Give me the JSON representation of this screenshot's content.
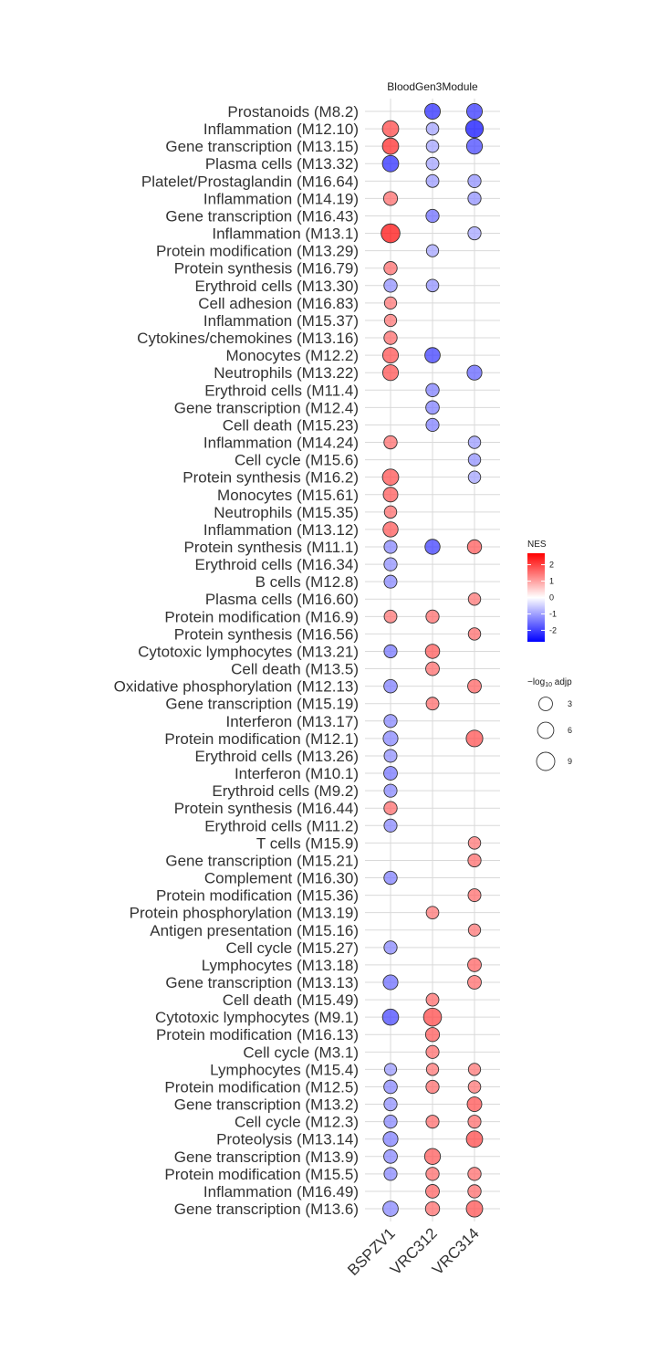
{
  "chart_data": {
    "type": "scatter",
    "facet_label": "BloodGen3Module",
    "columns": [
      "BSPZV1",
      "VRC312",
      "VRC314"
    ],
    "rows": [
      "Prostanoids (M8.2)",
      "Inflammation (M12.10)",
      "Gene transcription (M13.15)",
      "Plasma cells (M13.32)",
      "Platelet/Prostaglandin (M16.64)",
      "Inflammation (M14.19)",
      "Gene transcription (M16.43)",
      "Inflammation (M13.1)",
      "Protein modification (M13.29)",
      "Protein synthesis (M16.79)",
      "Erythroid cells (M13.30)",
      "Cell adhesion (M16.83)",
      "Inflammation (M15.37)",
      "Cytokines/chemokines (M13.16)",
      "Monocytes (M12.2)",
      "Neutrophils (M13.22)",
      "Erythroid cells (M11.4)",
      "Gene transcription (M12.4)",
      "Cell death (M15.23)",
      "Inflammation (M14.24)",
      "Cell cycle (M15.6)",
      "Protein synthesis (M16.2)",
      "Monocytes (M15.61)",
      "Neutrophils (M15.35)",
      "Inflammation (M13.12)",
      "Protein synthesis (M11.1)",
      "Erythroid cells (M16.34)",
      "B cells (M12.8)",
      "Plasma cells (M16.60)",
      "Protein modification (M16.9)",
      "Protein synthesis (M16.56)",
      "Cytotoxic lymphocytes (M13.21)",
      "Cell death (M13.5)",
      "Oxidative phosphorylation (M12.13)",
      "Gene transcription (M15.19)",
      "Interferon (M13.17)",
      "Protein modification (M12.1)",
      "Erythroid cells (M13.26)",
      "Interferon (M10.1)",
      "Erythroid cells (M9.2)",
      "Protein synthesis (M16.44)",
      "Erythroid cells (M11.2)",
      "T cells (M15.9)",
      "Gene transcription (M15.21)",
      "Complement (M16.30)",
      "Protein modification (M15.36)",
      "Protein phosphorylation (M13.19)",
      "Antigen presentation (M15.16)",
      "Cell cycle (M15.27)",
      "Lymphocytes (M13.18)",
      "Gene transcription (M13.13)",
      "Cell death (M15.49)",
      "Cytotoxic lymphocytes (M9.1)",
      "Protein modification (M16.13)",
      "Cell cycle (M3.1)",
      "Lymphocytes (M15.4)",
      "Protein modification (M12.5)",
      "Gene transcription (M13.2)",
      "Cell cycle (M12.3)",
      "Proteolysis (M13.14)",
      "Gene transcription (M13.9)",
      "Protein modification (M15.5)",
      "Inflammation (M16.49)",
      "Gene transcription (M13.6)"
    ],
    "points": [
      {
        "row": 0,
        "col": 1,
        "nes": -2.3,
        "size": 5.2
      },
      {
        "row": 0,
        "col": 2,
        "nes": -2.2,
        "size": 5.2
      },
      {
        "row": 1,
        "col": 0,
        "nes": 2.0,
        "size": 6.0
      },
      {
        "row": 1,
        "col": 1,
        "nes": -1.0,
        "size": 2.0
      },
      {
        "row": 1,
        "col": 2,
        "nes": -2.6,
        "size": 8.0
      },
      {
        "row": 2,
        "col": 0,
        "nes": 2.3,
        "size": 6.0
      },
      {
        "row": 2,
        "col": 1,
        "nes": -1.0,
        "size": 2.0
      },
      {
        "row": 2,
        "col": 2,
        "nes": -2.0,
        "size": 5.4
      },
      {
        "row": 3,
        "col": 0,
        "nes": -2.3,
        "size": 6.0
      },
      {
        "row": 3,
        "col": 1,
        "nes": -1.0,
        "size": 2.2
      },
      {
        "row": 4,
        "col": 1,
        "nes": -1.1,
        "size": 2.2
      },
      {
        "row": 4,
        "col": 2,
        "nes": -1.2,
        "size": 2.5
      },
      {
        "row": 5,
        "col": 0,
        "nes": 1.6,
        "size": 3.3
      },
      {
        "row": 5,
        "col": 2,
        "nes": -1.2,
        "size": 2.5
      },
      {
        "row": 6,
        "col": 1,
        "nes": -1.6,
        "size": 2.5
      },
      {
        "row": 7,
        "col": 0,
        "nes": 2.6,
        "size": 10.0
      },
      {
        "row": 7,
        "col": 2,
        "nes": -1.0,
        "size": 2.5
      },
      {
        "row": 8,
        "col": 1,
        "nes": -1.0,
        "size": 1.8
      },
      {
        "row": 9,
        "col": 0,
        "nes": 1.6,
        "size": 2.6
      },
      {
        "row": 10,
        "col": 0,
        "nes": -1.2,
        "size": 2.6
      },
      {
        "row": 10,
        "col": 1,
        "nes": -1.2,
        "size": 2.0
      },
      {
        "row": 11,
        "col": 0,
        "nes": 1.5,
        "size": 1.8
      },
      {
        "row": 12,
        "col": 0,
        "nes": 1.5,
        "size": 1.8
      },
      {
        "row": 13,
        "col": 0,
        "nes": 1.6,
        "size": 2.6
      },
      {
        "row": 14,
        "col": 0,
        "nes": 1.9,
        "size": 5.3
      },
      {
        "row": 14,
        "col": 1,
        "nes": -2.1,
        "size": 4.8
      },
      {
        "row": 15,
        "col": 0,
        "nes": 1.9,
        "size": 5.3
      },
      {
        "row": 15,
        "col": 2,
        "nes": -1.7,
        "size": 4.2
      },
      {
        "row": 16,
        "col": 1,
        "nes": -1.4,
        "size": 2.6
      },
      {
        "row": 17,
        "col": 1,
        "nes": -1.4,
        "size": 2.8
      },
      {
        "row": 18,
        "col": 1,
        "nes": -1.4,
        "size": 2.4
      },
      {
        "row": 19,
        "col": 0,
        "nes": 1.6,
        "size": 2.6
      },
      {
        "row": 19,
        "col": 2,
        "nes": -1.1,
        "size": 1.9
      },
      {
        "row": 20,
        "col": 2,
        "nes": -1.2,
        "size": 1.9
      },
      {
        "row": 21,
        "col": 0,
        "nes": 1.9,
        "size": 6.0
      },
      {
        "row": 21,
        "col": 2,
        "nes": -1.0,
        "size": 1.9
      },
      {
        "row": 22,
        "col": 0,
        "nes": 1.8,
        "size": 4.0
      },
      {
        "row": 23,
        "col": 0,
        "nes": 1.6,
        "size": 1.9
      },
      {
        "row": 24,
        "col": 0,
        "nes": 1.8,
        "size": 4.5
      },
      {
        "row": 25,
        "col": 0,
        "nes": -1.3,
        "size": 2.4
      },
      {
        "row": 25,
        "col": 1,
        "nes": -2.1,
        "size": 4.5
      },
      {
        "row": 25,
        "col": 2,
        "nes": 1.8,
        "size": 3.5
      },
      {
        "row": 26,
        "col": 0,
        "nes": -1.2,
        "size": 2.5
      },
      {
        "row": 27,
        "col": 0,
        "nes": -1.3,
        "size": 2.3
      },
      {
        "row": 28,
        "col": 2,
        "nes": 1.5,
        "size": 1.9
      },
      {
        "row": 29,
        "col": 0,
        "nes": 1.5,
        "size": 2.2
      },
      {
        "row": 29,
        "col": 1,
        "nes": 1.6,
        "size": 2.5
      },
      {
        "row": 30,
        "col": 2,
        "nes": 1.6,
        "size": 1.9
      },
      {
        "row": 31,
        "col": 0,
        "nes": -1.5,
        "size": 2.4
      },
      {
        "row": 31,
        "col": 1,
        "nes": 1.8,
        "size": 3.6
      },
      {
        "row": 32,
        "col": 1,
        "nes": 1.6,
        "size": 3.0
      },
      {
        "row": 33,
        "col": 0,
        "nes": -1.4,
        "size": 2.8
      },
      {
        "row": 33,
        "col": 2,
        "nes": 1.7,
        "size": 3.0
      },
      {
        "row": 34,
        "col": 1,
        "nes": 1.6,
        "size": 2.2
      },
      {
        "row": 35,
        "col": 0,
        "nes": -1.3,
        "size": 2.5
      },
      {
        "row": 36,
        "col": 0,
        "nes": -1.3,
        "size": 4.2
      },
      {
        "row": 36,
        "col": 2,
        "nes": 1.9,
        "size": 6.5
      },
      {
        "row": 37,
        "col": 0,
        "nes": -1.2,
        "size": 2.3
      },
      {
        "row": 38,
        "col": 0,
        "nes": -1.5,
        "size": 3.0
      },
      {
        "row": 39,
        "col": 0,
        "nes": -1.3,
        "size": 2.4
      },
      {
        "row": 40,
        "col": 0,
        "nes": 1.6,
        "size": 2.6
      },
      {
        "row": 41,
        "col": 0,
        "nes": -1.3,
        "size": 2.4
      },
      {
        "row": 42,
        "col": 2,
        "nes": 1.5,
        "size": 1.9
      },
      {
        "row": 43,
        "col": 2,
        "nes": 1.6,
        "size": 2.5
      },
      {
        "row": 44,
        "col": 0,
        "nes": -1.4,
        "size": 2.6
      },
      {
        "row": 45,
        "col": 2,
        "nes": 1.6,
        "size": 2.3
      },
      {
        "row": 46,
        "col": 1,
        "nes": 1.5,
        "size": 2.1
      },
      {
        "row": 47,
        "col": 2,
        "nes": 1.5,
        "size": 1.8
      },
      {
        "row": 48,
        "col": 0,
        "nes": -1.3,
        "size": 2.5
      },
      {
        "row": 49,
        "col": 2,
        "nes": 1.7,
        "size": 3.0
      },
      {
        "row": 50,
        "col": 0,
        "nes": -1.6,
        "size": 4.2
      },
      {
        "row": 50,
        "col": 2,
        "nes": 1.6,
        "size": 3.0
      },
      {
        "row": 51,
        "col": 1,
        "nes": 1.6,
        "size": 2.2
      },
      {
        "row": 52,
        "col": 0,
        "nes": -2.0,
        "size": 5.8
      },
      {
        "row": 52,
        "col": 1,
        "nes": 2.0,
        "size": 8.5
      },
      {
        "row": 53,
        "col": 1,
        "nes": 1.8,
        "size": 3.3
      },
      {
        "row": 54,
        "col": 1,
        "nes": 1.6,
        "size": 2.4
      },
      {
        "row": 55,
        "col": 0,
        "nes": -1.1,
        "size": 1.7
      },
      {
        "row": 55,
        "col": 1,
        "nes": 1.5,
        "size": 1.8
      },
      {
        "row": 55,
        "col": 2,
        "nes": 1.5,
        "size": 1.8
      },
      {
        "row": 56,
        "col": 0,
        "nes": -1.3,
        "size": 2.8
      },
      {
        "row": 56,
        "col": 1,
        "nes": 1.6,
        "size": 2.5
      },
      {
        "row": 56,
        "col": 2,
        "nes": 1.5,
        "size": 2.0
      },
      {
        "row": 57,
        "col": 0,
        "nes": -1.2,
        "size": 2.5
      },
      {
        "row": 57,
        "col": 2,
        "nes": 1.9,
        "size": 4.0
      },
      {
        "row": 58,
        "col": 0,
        "nes": -1.3,
        "size": 2.5
      },
      {
        "row": 58,
        "col": 1,
        "nes": 1.6,
        "size": 2.4
      },
      {
        "row": 58,
        "col": 2,
        "nes": 1.6,
        "size": 2.4
      },
      {
        "row": 59,
        "col": 0,
        "nes": -1.4,
        "size": 4.2
      },
      {
        "row": 59,
        "col": 2,
        "nes": 2.0,
        "size": 6.0
      },
      {
        "row": 60,
        "col": 0,
        "nes": -1.3,
        "size": 3.0
      },
      {
        "row": 60,
        "col": 1,
        "nes": 1.8,
        "size": 5.5
      },
      {
        "row": 61,
        "col": 0,
        "nes": -1.3,
        "size": 2.4
      },
      {
        "row": 61,
        "col": 1,
        "nes": 1.6,
        "size": 2.6
      },
      {
        "row": 61,
        "col": 2,
        "nes": 1.6,
        "size": 2.6
      },
      {
        "row": 62,
        "col": 1,
        "nes": 1.7,
        "size": 3.0
      },
      {
        "row": 62,
        "col": 2,
        "nes": 1.6,
        "size": 2.6
      },
      {
        "row": 63,
        "col": 0,
        "nes": -1.3,
        "size": 4.8
      },
      {
        "row": 63,
        "col": 1,
        "nes": 1.6,
        "size": 3.5
      },
      {
        "row": 63,
        "col": 2,
        "nes": 1.9,
        "size": 6.2
      }
    ],
    "color_legend": {
      "title": "NES",
      "ticks": [
        2,
        1,
        0,
        -1,
        -2
      ],
      "range": [
        -2.7,
        2.7
      ],
      "low_color": "#0000ff",
      "mid_color": "#ffffff",
      "high_color": "#ff0000"
    },
    "size_legend": {
      "title_main": "−log",
      "title_sub": "10",
      "title_end": " adjp",
      "values": [
        3,
        6,
        9
      ]
    },
    "grid": true
  }
}
